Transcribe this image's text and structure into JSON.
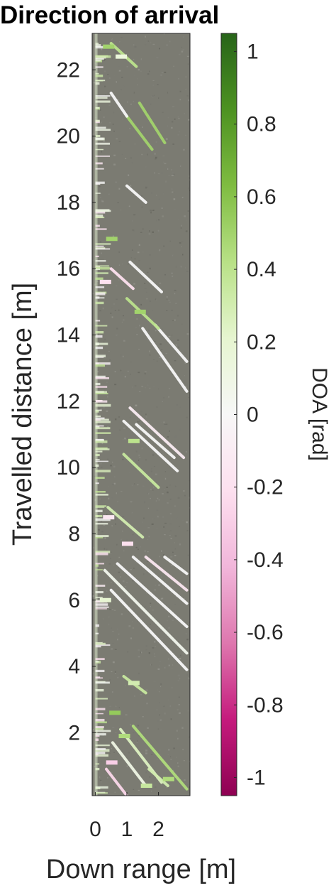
{
  "chart_data": {
    "type": "heatmap",
    "title": "Direction of arrival",
    "xlabel": "Down range [m]",
    "ylabel": "Travelled distance [m]",
    "xlim": [
      -0.1,
      3.0
    ],
    "ylim": [
      0.1,
      23.1
    ],
    "x_ticks": [
      "0",
      "1",
      "2"
    ],
    "x_tick_values": [
      0,
      1,
      2
    ],
    "y_ticks": [
      "2",
      "4",
      "6",
      "8",
      "10",
      "12",
      "14",
      "16",
      "18",
      "20",
      "22"
    ],
    "y_tick_values": [
      2,
      4,
      6,
      8,
      10,
      12,
      14,
      16,
      18,
      20,
      22
    ],
    "colorbar": {
      "label": "DOA [rad]",
      "ticks": [
        "1",
        "0.8",
        "0.6",
        "0.4",
        "0.2",
        "0",
        "-0.2",
        "-0.4",
        "-0.6",
        "-0.8",
        "-1"
      ],
      "tick_values": [
        1,
        0.8,
        0.6,
        0.4,
        0.2,
        0,
        -0.2,
        -0.4,
        -0.6,
        -0.8,
        -1
      ],
      "range": [
        -1.05,
        1.05
      ],
      "colors": [
        "#8e0152",
        "#c51b7d",
        "#de77ae",
        "#f1b6da",
        "#fde0ef",
        "#f7f7f7",
        "#e6f5d0",
        "#b8e186",
        "#7fbc41",
        "#4d9221",
        "#276419"
      ]
    },
    "background_color": "#7b7b72",
    "streaks": [
      {
        "x0": 0.35,
        "y0": 0.9,
        "x1": 1.0,
        "y1": 0.1,
        "doa": -0.25
      },
      {
        "x0": 0.55,
        "y0": 1.7,
        "x1": 1.6,
        "y1": 0.4,
        "doa": 0.1
      },
      {
        "x0": 0.8,
        "y0": 2.1,
        "x1": 2.1,
        "y1": 0.5,
        "doa": 0.25
      },
      {
        "x0": 1.2,
        "y0": 2.2,
        "x1": 2.9,
        "y1": 0.3,
        "doa": 0.45
      },
      {
        "x0": 1.7,
        "y0": 0.9,
        "x1": 2.3,
        "y1": 0.4,
        "doa": 0.3
      },
      {
        "x0": 0.9,
        "y0": 3.7,
        "x1": 1.6,
        "y1": 3.2,
        "doa": 0.35
      },
      {
        "x0": 0.5,
        "y0": 6.3,
        "x1": 2.9,
        "y1": 3.9,
        "doa": 0.0
      },
      {
        "x0": 0.3,
        "y0": 6.9,
        "x1": 2.9,
        "y1": 4.4,
        "doa": 0.05
      },
      {
        "x0": 0.7,
        "y0": 7.1,
        "x1": 2.9,
        "y1": 5.2,
        "doa": 0.0
      },
      {
        "x0": 1.2,
        "y0": 7.3,
        "x1": 2.9,
        "y1": 5.9,
        "doa": 0.0
      },
      {
        "x0": 1.6,
        "y0": 7.3,
        "x1": 2.9,
        "y1": 6.3,
        "doa": -0.15
      },
      {
        "x0": 2.2,
        "y0": 7.3,
        "x1": 2.9,
        "y1": 6.8,
        "doa": 0.0
      },
      {
        "x0": 0.4,
        "y0": 8.8,
        "x1": 1.5,
        "y1": 7.9,
        "doa": 0.3
      },
      {
        "x0": 0.9,
        "y0": 11.4,
        "x1": 2.6,
        "y1": 9.9,
        "doa": 0.0
      },
      {
        "x0": 1.1,
        "y0": 11.8,
        "x1": 2.8,
        "y1": 10.3,
        "doa": -0.1
      },
      {
        "x0": 1.3,
        "y0": 11.3,
        "x1": 2.5,
        "y1": 10.3,
        "doa": 0.0
      },
      {
        "x0": 0.9,
        "y0": 10.4,
        "x1": 2.0,
        "y1": 9.4,
        "doa": 0.35
      },
      {
        "x0": 1.5,
        "y0": 14.2,
        "x1": 2.9,
        "y1": 12.3,
        "doa": 0.0
      },
      {
        "x0": 1.9,
        "y0": 14.3,
        "x1": 2.9,
        "y1": 13.2,
        "doa": 0.0
      },
      {
        "x0": 1.0,
        "y0": 15.1,
        "x1": 2.0,
        "y1": 14.2,
        "doa": 0.4
      },
      {
        "x0": 1.1,
        "y0": 16.2,
        "x1": 2.1,
        "y1": 15.3,
        "doa": 0.0
      },
      {
        "x0": 0.5,
        "y0": 16.0,
        "x1": 1.2,
        "y1": 15.4,
        "doa": -0.2
      },
      {
        "x0": 1.0,
        "y0": 20.6,
        "x1": 1.8,
        "y1": 19.6,
        "doa": 0.5
      },
      {
        "x0": 1.4,
        "y0": 21.0,
        "x1": 2.2,
        "y1": 19.8,
        "doa": 0.5
      },
      {
        "x0": 0.5,
        "y0": 21.3,
        "x1": 1.0,
        "y1": 20.6,
        "doa": 0.0
      },
      {
        "x0": 1.0,
        "y0": 18.5,
        "x1": 1.6,
        "y1": 18.0,
        "doa": 0.0
      },
      {
        "x0": 0.5,
        "y0": 22.8,
        "x1": 1.3,
        "y1": 22.1,
        "doa": 0.4
      }
    ],
    "patches": [
      {
        "x": 0.4,
        "y": 22.7,
        "doa": 0.5
      },
      {
        "x": 0.8,
        "y": 22.4,
        "doa": 0.15
      },
      {
        "x": 0.5,
        "y": 16.9,
        "doa": 0.5
      },
      {
        "x": 0.3,
        "y": 15.6,
        "doa": -0.2
      },
      {
        "x": 1.4,
        "y": 14.7,
        "doa": 0.5
      },
      {
        "x": 1.2,
        "y": 10.8,
        "doa": 0.4
      },
      {
        "x": 0.4,
        "y": 8.5,
        "doa": -0.15
      },
      {
        "x": 1.0,
        "y": 7.7,
        "doa": -0.2
      },
      {
        "x": 0.3,
        "y": 6.0,
        "doa": 0.2
      },
      {
        "x": 1.2,
        "y": 3.5,
        "doa": 0.3
      },
      {
        "x": 0.6,
        "y": 2.6,
        "doa": 0.55
      },
      {
        "x": 0.9,
        "y": 1.9,
        "doa": 0.45
      },
      {
        "x": 0.5,
        "y": 1.1,
        "doa": -0.3
      },
      {
        "x": 2.3,
        "y": 0.6,
        "doa": 0.45
      },
      {
        "x": 1.6,
        "y": 0.4,
        "doa": 0.35
      }
    ]
  }
}
